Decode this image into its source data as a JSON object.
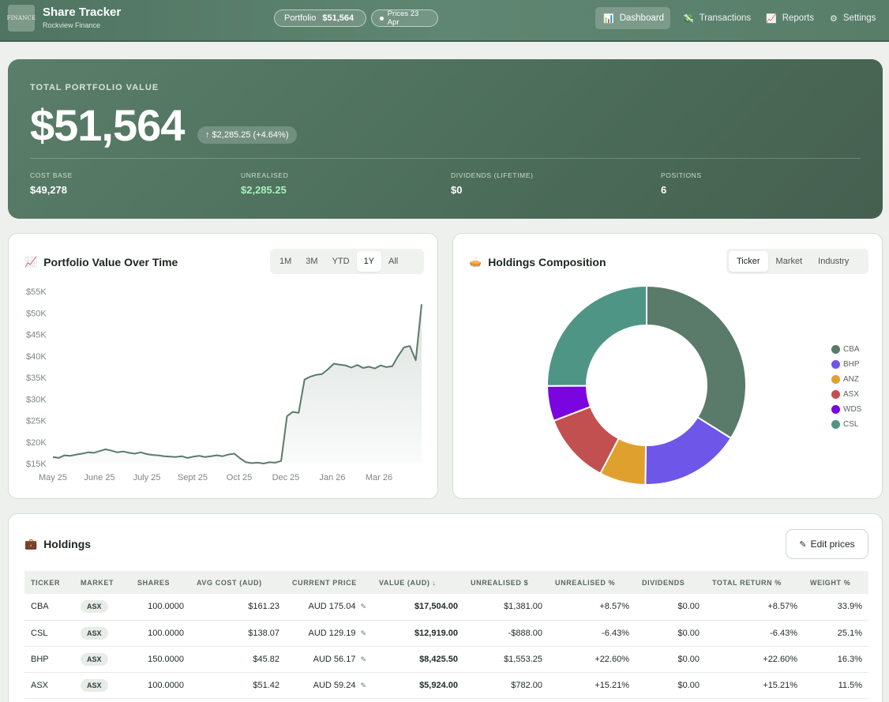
{
  "brand": {
    "logo_text": "FINANCE",
    "title": "Share Tracker",
    "subtitle": "Rockview Finance"
  },
  "header": {
    "portfolio_label": "Portfolio",
    "portfolio_value": "$51,564",
    "prices_label": "Prices 23 Apr",
    "nav": [
      {
        "label": "Dashboard",
        "icon": "bar-chart-icon",
        "active": true
      },
      {
        "label": "Transactions",
        "icon": "arrows-icon",
        "active": false
      },
      {
        "label": "Reports",
        "icon": "line-chart-icon",
        "active": false
      },
      {
        "label": "Settings",
        "icon": "gear-icon",
        "active": false
      }
    ]
  },
  "hero": {
    "label": "TOTAL PORTFOLIO VALUE",
    "value": "$51,564",
    "change": "↑ $2,285.25 (+4.64%)",
    "stats": [
      {
        "label": "COST BASE",
        "value": "$49,278"
      },
      {
        "label": "UNREALISED",
        "value": "$2,285.25"
      },
      {
        "label": "DIVIDENDS (LIFETIME)",
        "value": "$0"
      },
      {
        "label": "POSITIONS",
        "value": "6"
      }
    ]
  },
  "value_chart": {
    "title": "Portfolio Value Over Time",
    "ranges": [
      "1M",
      "3M",
      "YTD",
      "1Y",
      "All"
    ],
    "active_range": "1Y"
  },
  "composition": {
    "title": "Holdings Composition",
    "tabs": [
      "Ticker",
      "Market",
      "Industry"
    ],
    "active_tab": "Ticker"
  },
  "chart_data": [
    {
      "type": "area",
      "title": "Portfolio Value Over Time",
      "x_tick_labels": [
        "May 25",
        "June 25",
        "July 25",
        "Sept 25",
        "Oct 25",
        "Dec 25",
        "Jan 26",
        "Mar 26"
      ],
      "y_tick_labels": [
        "$15K",
        "$20K",
        "$25K",
        "$30K",
        "$35K",
        "$40K",
        "$45K",
        "$50K",
        "$55K"
      ],
      "ylim": [
        15000,
        55000
      ],
      "grid": false,
      "series": [
        {
          "values": [
            16500,
            16300,
            16900,
            16800,
            17100,
            17300,
            17600,
            17500,
            17900,
            18300,
            18000,
            17600,
            17800,
            17500,
            17300,
            17600,
            17200,
            17000,
            16900,
            16700,
            16600,
            16500,
            16700,
            16300,
            16600,
            16800,
            16500,
            16700,
            16900,
            16700,
            17100,
            17300,
            16200,
            15300,
            15100,
            15200,
            15000,
            15300,
            15200,
            15600,
            26000,
            27000,
            26800,
            34500,
            35200,
            35600,
            35800,
            36900,
            38200,
            38000,
            37800,
            37300,
            37900,
            37200,
            37500,
            37100,
            37800,
            37400,
            37600,
            40000,
            42000,
            42300,
            39000,
            52000
          ]
        }
      ]
    },
    {
      "type": "pie",
      "title": "Holdings Composition",
      "labels": [
        "CBA",
        "BHP",
        "ANZ",
        "ASX",
        "WDS",
        "CSL"
      ],
      "values": [
        33.9,
        16.3,
        7.5,
        11.5,
        5.7,
        25.1
      ],
      "colors": [
        "#5a7b69",
        "#6e57e8",
        "#e0a02e",
        "#c25050",
        "#7a05e0",
        "#4f9585"
      ],
      "legend_position": "right"
    }
  ],
  "holdings": {
    "title": "Holdings",
    "edit_label": "Edit prices",
    "columns": [
      "TICKER",
      "MARKET",
      "SHARES",
      "AVG COST (AUD)",
      "CURRENT PRICE",
      "VALUE (AUD) ↓",
      "UNREALISED $",
      "UNREALISED %",
      "DIVIDENDS",
      "TOTAL RETURN %",
      "WEIGHT %"
    ],
    "rows": [
      {
        "ticker": "CBA",
        "market": "ASX",
        "shares": "100.0000",
        "avg_cost": "$161.23",
        "price": "AUD 175.04",
        "value": "$17,504.00",
        "unreal": "$1,381.00",
        "unreal_pct": "+8.57%",
        "dividends": "$0.00",
        "total_return": "+8.57%",
        "weight": "33.9%"
      },
      {
        "ticker": "CSL",
        "market": "ASX",
        "shares": "100.0000",
        "avg_cost": "$138.07",
        "price": "AUD 129.19",
        "value": "$12,919.00",
        "unreal": "-$888.00",
        "unreal_pct": "-6.43%",
        "dividends": "$0.00",
        "total_return": "-6.43%",
        "weight": "25.1%"
      },
      {
        "ticker": "BHP",
        "market": "ASX",
        "shares": "150.0000",
        "avg_cost": "$45.82",
        "price": "AUD 56.17",
        "value": "$8,425.50",
        "unreal": "$1,553.25",
        "unreal_pct": "+22.60%",
        "dividends": "$0.00",
        "total_return": "+22.60%",
        "weight": "16.3%"
      },
      {
        "ticker": "ASX",
        "market": "ASX",
        "shares": "100.0000",
        "avg_cost": "$51.42",
        "price": "AUD 59.24",
        "value": "$5,924.00",
        "unreal": "$782.00",
        "unreal_pct": "+15.21%",
        "dividends": "$0.00",
        "total_return": "+15.21%",
        "weight": "11.5%"
      }
    ]
  }
}
